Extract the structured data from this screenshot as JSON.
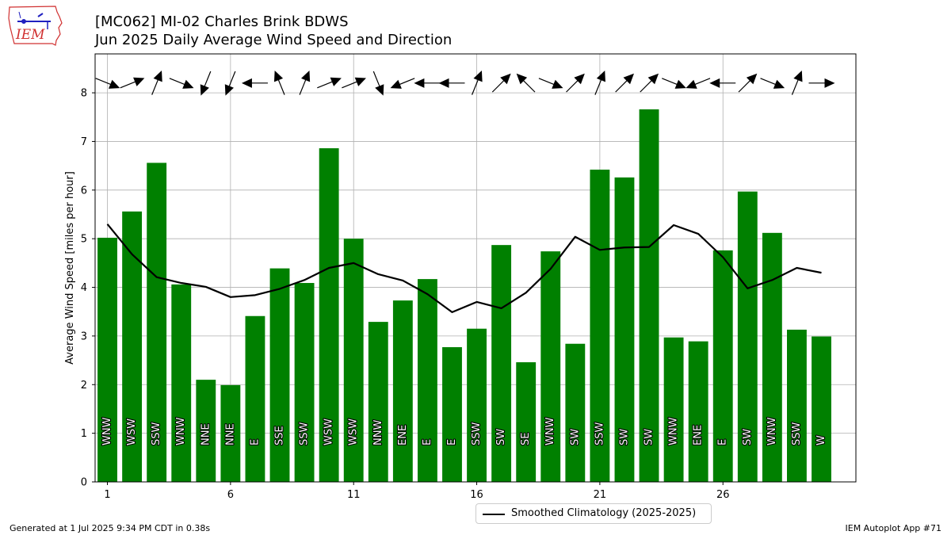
{
  "header": {
    "title_line1": "[MC062] MI-02 Charles Brink BDWS",
    "title_line2": "Jun 2025 Daily Average Wind Speed and Direction",
    "logo_text": "IEM"
  },
  "footer": {
    "generated": "Generated at 1 Jul 2025 9:34 PM CDT in 0.38s",
    "app": "IEM Autoplot App #71"
  },
  "colors": {
    "bar": "#008000",
    "line": "#000000",
    "grid": "#b0b0b0",
    "logo_red": "#d03030",
    "logo_blue": "#2020c0"
  },
  "chart_data": {
    "type": "bar",
    "ylabel": "Average Wind Speed [miles per hour]",
    "xlabel": "",
    "ylim": [
      0,
      8.8
    ],
    "xlim": [
      0.5,
      31.4
    ],
    "xticks": [
      1,
      6,
      11,
      16,
      21,
      26
    ],
    "yticks": [
      0,
      1,
      2,
      3,
      4,
      5,
      6,
      7,
      8
    ],
    "grid": true,
    "legend_position": "bottom-center",
    "days": [
      1,
      2,
      3,
      4,
      5,
      6,
      7,
      8,
      9,
      10,
      11,
      12,
      13,
      14,
      15,
      16,
      17,
      18,
      19,
      20,
      21,
      22,
      23,
      24,
      25,
      26,
      27,
      28,
      29,
      30
    ],
    "values": [
      5.02,
      5.56,
      6.56,
      4.06,
      2.1,
      1.99,
      3.41,
      4.39,
      4.09,
      6.86,
      5.0,
      3.29,
      3.73,
      4.17,
      2.77,
      3.15,
      4.87,
      2.46,
      4.74,
      2.84,
      6.42,
      6.26,
      7.66,
      2.97,
      2.89,
      4.76,
      5.97,
      5.12,
      3.13,
      2.99
    ],
    "directions": [
      "WNW",
      "WSW",
      "SSW",
      "WNW",
      "NNE",
      "NNE",
      "E",
      "SSE",
      "SSW",
      "WSW",
      "WSW",
      "NNW",
      "ENE",
      "E",
      "E",
      "SSW",
      "SW",
      "SE",
      "WNW",
      "SW",
      "SSW",
      "SW",
      "SW",
      "WNW",
      "ENE",
      "E",
      "SW",
      "WNW",
      "SSW",
      "W"
    ],
    "arrow_degrees": [
      292,
      248,
      202,
      292,
      22,
      22,
      90,
      158,
      202,
      248,
      248,
      338,
      68,
      90,
      90,
      202,
      225,
      135,
      292,
      225,
      202,
      225,
      225,
      292,
      68,
      90,
      225,
      292,
      202,
      270
    ],
    "series": [
      {
        "name": "Smoothed Climatology (2025-2025)",
        "type": "line",
        "x": [
          1,
          2,
          3,
          4,
          5,
          6,
          7,
          8,
          9,
          10,
          11,
          12,
          13,
          14,
          15,
          16,
          17,
          18,
          19,
          20,
          21,
          22,
          23,
          24,
          25,
          26,
          27,
          28,
          29,
          30
        ],
        "values": [
          5.3,
          4.68,
          4.21,
          4.09,
          4.01,
          3.8,
          3.84,
          3.97,
          4.15,
          4.4,
          4.5,
          4.27,
          4.14,
          3.86,
          3.49,
          3.7,
          3.57,
          3.89,
          4.38,
          5.04,
          4.77,
          4.82,
          4.83,
          5.28,
          5.1,
          4.62,
          3.98,
          4.15,
          4.4,
          4.3
        ]
      }
    ]
  }
}
